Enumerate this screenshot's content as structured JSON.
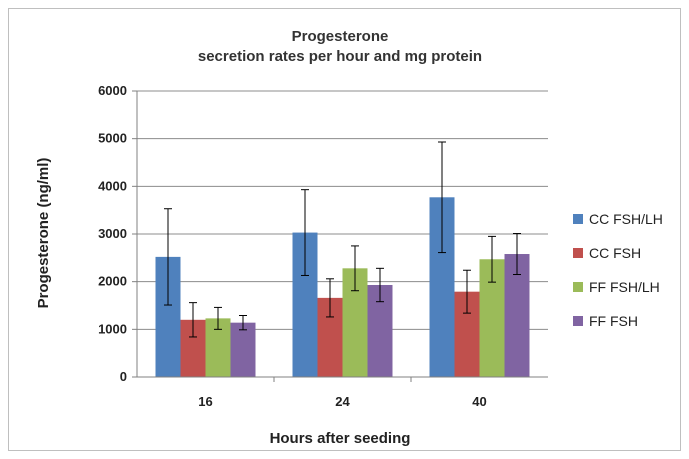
{
  "chart_data": {
    "type": "bar",
    "title": "Progesterone",
    "subtitle": "secretion rates per hour and mg protein",
    "xlabel": "Hours after seeding",
    "ylabel": "Progesterone (ng/ml)",
    "categories": [
      "16",
      "24",
      "40"
    ],
    "ylim": [
      0,
      6000
    ],
    "yticks": [
      "0",
      "1000",
      "2000",
      "3000",
      "4000",
      "5000",
      "6000"
    ],
    "grid": "horizontal",
    "legend": "right",
    "series": [
      {
        "name": "CC FSH/LH",
        "color": "#4f81bd",
        "values": [
          2520,
          3030,
          3770
        ],
        "errors": [
          1010,
          900,
          1160
        ]
      },
      {
        "name": "CC FSH",
        "color": "#c0504d",
        "values": [
          1200,
          1660,
          1790
        ],
        "errors": [
          360,
          400,
          450
        ]
      },
      {
        "name": "FF FSH/LH",
        "color": "#9bbb59",
        "values": [
          1230,
          2280,
          2470
        ],
        "errors": [
          230,
          470,
          480
        ]
      },
      {
        "name": "FF FSH",
        "color": "#8064a2",
        "values": [
          1140,
          1930,
          2580
        ],
        "errors": [
          150,
          350,
          430
        ]
      }
    ]
  }
}
